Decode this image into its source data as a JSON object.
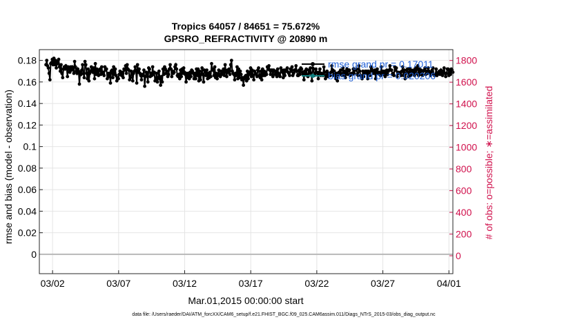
{
  "chart_data": {
    "type": "line",
    "title": "Tropics 64057 / 84651 = 75.672%",
    "subtitle": "GPSRO_REFRACTIVITY @ 20890 m",
    "xlabel": "Mar.01,2015 00:00:00 start",
    "ylabel_left": "rmse and bias (model - observation)",
    "ylabel_right": "# of obs: o=possible; ∗=assimilated",
    "footnote": "data file: /Users/raeder/DAI/ATM_forcXX/CAM6_setup/f.e21.FHIST_BGC.f09_025.CAM6assim.011/Diags_NTrS_2015-03/obs_diag_output.nc",
    "legend": [
      {
        "name": "rmse grand pr = 0.17011",
        "color": "#000000"
      },
      {
        "name": "bias grand pr = 0.020206",
        "color": "#0f7f7f"
      }
    ],
    "xlim": [
      0.5,
      31.8
    ],
    "ylim_left": [
      -0.018,
      0.19
    ],
    "ylim_right": [
      -165,
      1900
    ],
    "x_ticks": [
      {
        "value": 1.5,
        "label": "03/02"
      },
      {
        "value": 6.5,
        "label": "03/07"
      },
      {
        "value": 11.5,
        "label": "03/12"
      },
      {
        "value": 16.5,
        "label": "03/17"
      },
      {
        "value": 21.5,
        "label": "03/22"
      },
      {
        "value": 26.5,
        "label": "03/27"
      },
      {
        "value": 31.5,
        "label": "04/01"
      }
    ],
    "y_ticks_left": [
      "0",
      "0.02",
      "0.04",
      "0.06",
      "0.08",
      "0.1",
      "0.12",
      "0.14",
      "0.16",
      "0.18"
    ],
    "y_ticks_right": [
      "0",
      "200",
      "400",
      "600",
      "800",
      "1000",
      "1200",
      "1400",
      "1600",
      "1800"
    ],
    "series": [
      {
        "name": "rmse",
        "axis": "left",
        "color": "#000000",
        "values": [
          0.176,
          0.18,
          0.175,
          0.173,
          0.168,
          0.162,
          0.177,
          0.178,
          0.181,
          0.176,
          0.182,
          0.176,
          0.18,
          0.173,
          0.179,
          0.177,
          0.181,
          0.174,
          0.17,
          0.176,
          0.168,
          0.164,
          0.172,
          0.174,
          0.172,
          0.175,
          0.173,
          0.165,
          0.174,
          0.172,
          0.169,
          0.174,
          0.171,
          0.174,
          0.172,
          0.168,
          0.179,
          0.174,
          0.17,
          0.168,
          0.172,
          0.17,
          0.158,
          0.169,
          0.167,
          0.171,
          0.176,
          0.168,
          0.164,
          0.179,
          0.176,
          0.168,
          0.163,
          0.172,
          0.161,
          0.168,
          0.17,
          0.174,
          0.171,
          0.169,
          0.173,
          0.163,
          0.177,
          0.167,
          0.172,
          0.169,
          0.166,
          0.171,
          0.172,
          0.167,
          0.174,
          0.168,
          0.169,
          0.166,
          0.174,
          0.171,
          0.172,
          0.163,
          0.168,
          0.165,
          0.168,
          0.159,
          0.17,
          0.171,
          0.164,
          0.174,
          0.167,
          0.172,
          0.166,
          0.161,
          0.164,
          0.163,
          0.167,
          0.17,
          0.167,
          0.166,
          0.169,
          0.164,
          0.172,
          0.171,
          0.175,
          0.168,
          0.176,
          0.172,
          0.171,
          0.162,
          0.164,
          0.17,
          0.167,
          0.161,
          0.168,
          0.17,
          0.174,
          0.171,
          0.159,
          0.176,
          0.169,
          0.172,
          0.168,
          0.166,
          0.162,
          0.167,
          0.166,
          0.171,
          0.156,
          0.165,
          0.169,
          0.168,
          0.16,
          0.173,
          0.172,
          0.165,
          0.168,
          0.166,
          0.174,
          0.167,
          0.169,
          0.161,
          0.163,
          0.168,
          0.16,
          0.164,
          0.17,
          0.163,
          0.157,
          0.165,
          0.16,
          0.172,
          0.167,
          0.174,
          0.172,
          0.168,
          0.17,
          0.165,
          0.167,
          0.172,
          0.176,
          0.172,
          0.165,
          0.17,
          0.168,
          0.169,
          0.174,
          0.176,
          0.172,
          0.166,
          0.165,
          0.167,
          0.163,
          0.171,
          0.165,
          0.172,
          0.168,
          0.173,
          0.169,
          0.167,
          0.16,
          0.168,
          0.164,
          0.168,
          0.163,
          0.169,
          0.165,
          0.171,
          0.17,
          0.168,
          0.163,
          0.168,
          0.163,
          0.172,
          0.166,
          0.172,
          0.161,
          0.17,
          0.162,
          0.167,
          0.173,
          0.167,
          0.16,
          0.171,
          0.17,
          0.166,
          0.171,
          0.163,
          0.168,
          0.164,
          0.169,
          0.165,
          0.177,
          0.171,
          0.172,
          0.166,
          0.174,
          0.164,
          0.168,
          0.163,
          0.166,
          0.171,
          0.167,
          0.165,
          0.17,
          0.167,
          0.169,
          0.172,
          0.166,
          0.176,
          0.169,
          0.165,
          0.171,
          0.169,
          0.172,
          0.167,
          0.176,
          0.18,
          0.17,
          0.168,
          0.167,
          0.162,
          0.168,
          0.166,
          0.174,
          0.163,
          0.172,
          0.164,
          0.17,
          0.167,
          0.162,
          0.164,
          0.157,
          0.163,
          0.165,
          0.166,
          0.161,
          0.17,
          0.163,
          0.167,
          0.169,
          0.173,
          0.165,
          0.171,
          0.166,
          0.162,
          0.17,
          0.168,
          0.167,
          0.165,
          0.171,
          0.173,
          0.166,
          0.164,
          0.17,
          0.162,
          0.172,
          0.166,
          0.17,
          0.166,
          0.169,
          0.167,
          0.174,
          0.172,
          0.175,
          0.171,
          0.167,
          0.171,
          0.171,
          0.165,
          0.171,
          0.17,
          0.167,
          0.17,
          0.165,
          0.172,
          0.168,
          0.167,
          0.165,
          0.173,
          0.171,
          0.169,
          0.164,
          0.171,
          0.166,
          0.171,
          0.17,
          0.173,
          0.169,
          0.168,
          0.166,
          0.172,
          0.17,
          0.174,
          0.166,
          0.168,
          0.171,
          0.17,
          0.175,
          0.17,
          0.166,
          0.166,
          0.171,
          0.167,
          0.173,
          0.172,
          0.169,
          0.167,
          0.162,
          0.17,
          0.167,
          0.172,
          0.166,
          0.165,
          0.171,
          0.168,
          0.173,
          0.168,
          0.161,
          0.173,
          0.172,
          0.166,
          0.168,
          0.172,
          0.169,
          0.168,
          0.163,
          0.169,
          0.172,
          0.166,
          0.168,
          0.167,
          0.166,
          0.174,
          0.169,
          0.163,
          0.166,
          0.17,
          0.165,
          0.168,
          0.168,
          0.166,
          0.169,
          0.175,
          0.171,
          0.166,
          0.17,
          0.168,
          0.163,
          0.168,
          0.161,
          0.167,
          0.169,
          0.167,
          0.171,
          0.167,
          0.166,
          0.173,
          0.166,
          0.17,
          0.164,
          0.168,
          0.172,
          0.167,
          0.171,
          0.171,
          0.166,
          0.167,
          0.168,
          0.167,
          0.172,
          0.168,
          0.171,
          0.171,
          0.172,
          0.167,
          0.166,
          0.175,
          0.17,
          0.166,
          0.165,
          0.163,
          0.17,
          0.165,
          0.169,
          0.17,
          0.168,
          0.17,
          0.163,
          0.17,
          0.168,
          0.166,
          0.174,
          0.172,
          0.17,
          0.168,
          0.168,
          0.171,
          0.163,
          0.169,
          0.172,
          0.168,
          0.169,
          0.167,
          0.166,
          0.174,
          0.167,
          0.17,
          0.167,
          0.17,
          0.165,
          0.168,
          0.171,
          0.167,
          0.17,
          0.171,
          0.175,
          0.171,
          0.171,
          0.167,
          0.168,
          0.166,
          0.174,
          0.171,
          0.173,
          0.165,
          0.169,
          0.168,
          0.168,
          0.169,
          0.166,
          0.17,
          0.174,
          0.166,
          0.171,
          0.163,
          0.168,
          0.171,
          0.172,
          0.165,
          0.169,
          0.172,
          0.166,
          0.171,
          0.169,
          0.168,
          0.171,
          0.166,
          0.173,
          0.168,
          0.172,
          0.175,
          0.166,
          0.172,
          0.167,
          0.171,
          0.167,
          0.166,
          0.17,
          0.171,
          0.173,
          0.167,
          0.17,
          0.168,
          0.173,
          0.17,
          0.169,
          0.166,
          0.169,
          0.171,
          0.173,
          0.167,
          0.166,
          0.167,
          0.172,
          0.166,
          0.167,
          0.169,
          0.17,
          0.167,
          0.171,
          0.169,
          0.166,
          0.17,
          0.173,
          0.168,
          0.165,
          0.168,
          0.172,
          0.172,
          0.166,
          0.171,
          0.167,
          0.172,
          0.171,
          0.169
        ]
      }
    ]
  }
}
